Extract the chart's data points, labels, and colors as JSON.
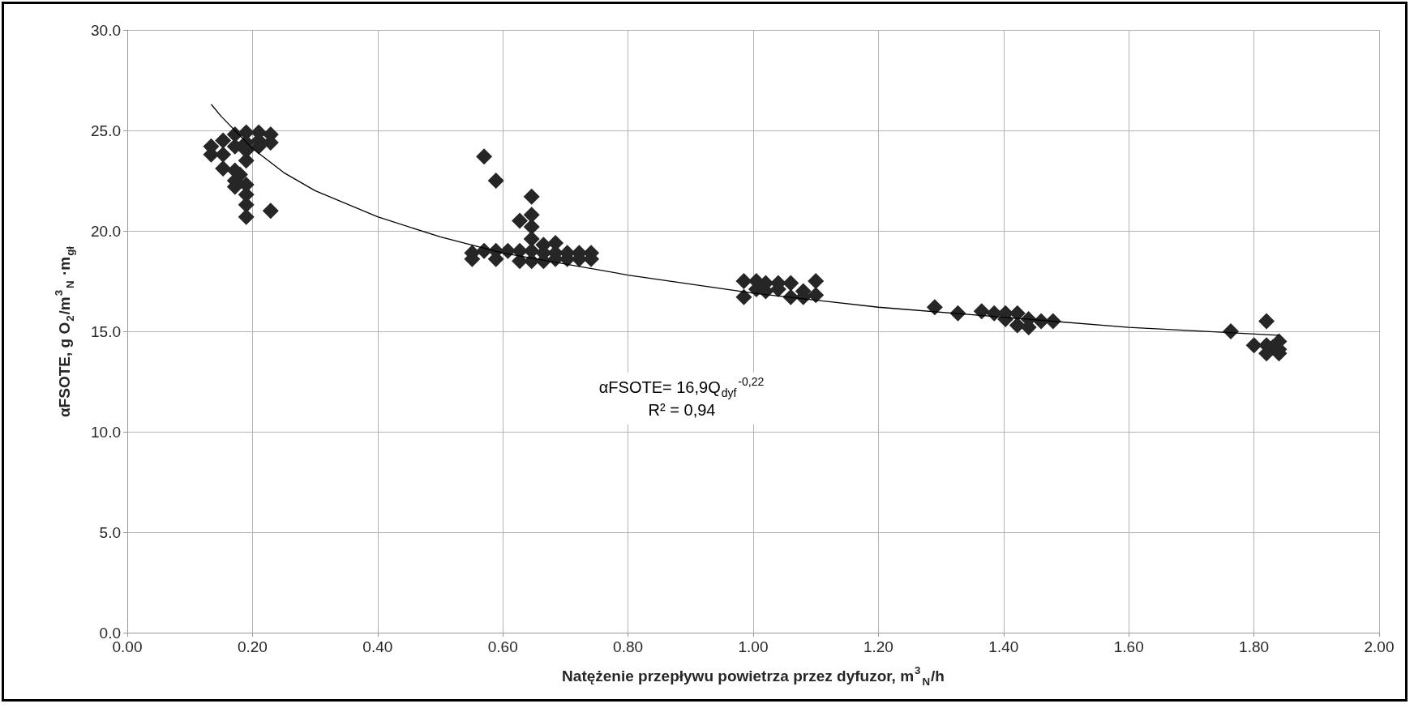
{
  "chart_data": {
    "type": "scatter",
    "xlabel": "Natężenie przepływu powietrza przez dyfuzor, m$^{3}$$_{N}$/h",
    "ylabel": "αFSOTE, g O$_{2}$/m$^{3}$$_{N}$ ·m$_{gł}$",
    "annotations": [
      "αFSOTE= 16,9Q$_{dyf}$$^{-0,22}$\nR² = 0,94"
    ],
    "xlim": [
      0,
      2
    ],
    "ylim": [
      0,
      30
    ],
    "xticks": [
      {
        "value": 0,
        "label": "0.00"
      },
      {
        "value": 0.2,
        "label": "0.20"
      },
      {
        "value": 0.4,
        "label": "0.40"
      },
      {
        "value": 0.6,
        "label": "0.60"
      },
      {
        "value": 0.8,
        "label": "0.80"
      },
      {
        "value": 1,
        "label": "1.00"
      },
      {
        "value": 1.2,
        "label": "1.20"
      },
      {
        "value": 1.4,
        "label": "1.40"
      },
      {
        "value": 1.6,
        "label": "1.60"
      },
      {
        "value": 1.8,
        "label": "1.80"
      },
      {
        "value": 2,
        "label": "2.00"
      }
    ],
    "yticks": [
      {
        "value": 0,
        "label": "0.0"
      },
      {
        "value": 5,
        "label": "5.0"
      },
      {
        "value": 10,
        "label": "10.0"
      },
      {
        "value": 15,
        "label": "15.0"
      },
      {
        "value": 20,
        "label": "20.0"
      },
      {
        "value": 25,
        "label": "25.0"
      },
      {
        "value": 30,
        "label": "30.0"
      }
    ],
    "grid": true,
    "marker": "diamond",
    "series": [
      {
        "color": "#262626",
        "x": [
          0.134,
          0.134,
          0.153,
          0.153,
          0.153,
          0.172,
          0.172,
          0.172,
          0.172,
          0.172,
          0.18,
          0.19,
          0.19,
          0.19,
          0.19,
          0.19,
          0.19,
          0.19,
          0.19,
          0.21,
          0.21,
          0.21,
          0.229,
          0.229,
          0.229,
          0.551,
          0.551,
          0.57,
          0.57,
          0.589,
          0.589,
          0.589,
          0.608,
          0.627,
          0.627,
          0.627,
          0.646,
          0.646,
          0.646,
          0.646,
          0.646,
          0.646,
          0.665,
          0.665,
          0.665,
          0.684,
          0.684,
          0.684,
          0.703,
          0.703,
          0.722,
          0.722,
          0.741,
          0.741,
          0.985,
          0.985,
          1.005,
          1.005,
          1.02,
          1.02,
          1.04,
          1.04,
          1.06,
          1.06,
          1.08,
          1.08,
          1.1,
          1.1,
          1.29,
          1.327,
          1.365,
          1.385,
          1.403,
          1.403,
          1.422,
          1.422,
          1.44,
          1.44,
          1.46,
          1.479,
          1.763,
          1.8,
          1.82,
          1.82,
          1.82,
          1.83,
          1.84,
          1.84,
          1.84
        ],
        "values": [
          24.2,
          23.8,
          24.5,
          23.1,
          23.8,
          24.8,
          24.2,
          23.0,
          22.5,
          22.2,
          22.8,
          24.9,
          24.4,
          24.0,
          23.5,
          22.3,
          21.8,
          21.3,
          20.7,
          24.9,
          24.5,
          24.2,
          24.8,
          24.4,
          21.0,
          18.9,
          18.6,
          23.7,
          19.0,
          22.5,
          19.0,
          18.6,
          19.0,
          20.5,
          19.0,
          18.5,
          21.7,
          20.8,
          20.2,
          19.6,
          19.0,
          18.5,
          19.3,
          18.9,
          18.5,
          19.4,
          18.9,
          18.6,
          18.9,
          18.6,
          18.9,
          18.6,
          18.9,
          18.6,
          17.5,
          16.7,
          17.5,
          17.1,
          17.4,
          17.0,
          17.4,
          17.1,
          17.4,
          16.7,
          17.0,
          16.7,
          17.5,
          16.8,
          16.2,
          15.9,
          16.0,
          15.9,
          15.9,
          15.6,
          15.9,
          15.3,
          15.6,
          15.2,
          15.5,
          15.5,
          15.0,
          14.3,
          15.5,
          14.3,
          13.9,
          14.2,
          14.5,
          14.1,
          13.9
        ]
      },
      {
        "type": "line",
        "color": "#000000",
        "marker": "none",
        "x": [
          0.134,
          0.15,
          0.2,
          0.25,
          0.3,
          0.4,
          0.5,
          0.6,
          0.8,
          1.0,
          1.2,
          1.4,
          1.6,
          1.84
        ],
        "values": [
          26.3,
          25.7,
          24.1,
          22.9,
          22.0,
          20.7,
          19.7,
          18.9,
          17.8,
          16.9,
          16.2,
          15.7,
          15.2,
          14.8
        ]
      }
    ]
  }
}
